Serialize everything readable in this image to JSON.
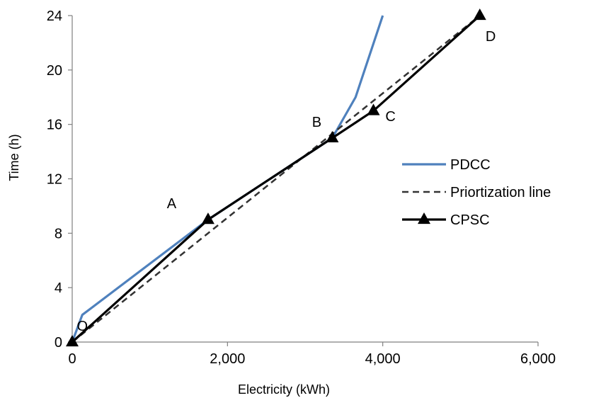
{
  "chart_data": {
    "type": "line",
    "title": "",
    "xlabel": "Electricity (kWh)",
    "ylabel": "Time (h)",
    "xlim": [
      0,
      6000
    ],
    "ylim": [
      0,
      24
    ],
    "x_ticks": [
      0,
      2000,
      4000,
      6000
    ],
    "x_tick_labels": [
      "0",
      "2,000",
      "4,000",
      "6,000"
    ],
    "y_ticks": [
      0,
      4,
      8,
      12,
      16,
      20,
      24
    ],
    "y_tick_labels": [
      "0",
      "4",
      "8",
      "12",
      "16",
      "20",
      "24"
    ],
    "grid": false,
    "legend_position": "right",
    "series": [
      {
        "name": "PDCC",
        "color": "#4f81bd",
        "style": "solid",
        "marker": "none",
        "points": [
          [
            0,
            0
          ],
          [
            130,
            2
          ],
          [
            1750,
            9
          ],
          [
            3350,
            15
          ],
          [
            3650,
            18
          ],
          [
            4000,
            24
          ]
        ]
      },
      {
        "name": "Priortization line",
        "color": "#333333",
        "style": "dashed",
        "marker": "none",
        "points": [
          [
            0,
            0
          ],
          [
            5250,
            24
          ]
        ]
      },
      {
        "name": "CPSC",
        "color": "#000000",
        "style": "solid",
        "marker": "triangle",
        "points": [
          [
            0,
            0
          ],
          [
            1750,
            9
          ],
          [
            3350,
            15
          ],
          [
            3880,
            17
          ],
          [
            5250,
            24
          ]
        ]
      }
    ],
    "annotations": [
      {
        "text": "O",
        "x": 130,
        "y": 1.2
      },
      {
        "text": "A",
        "x": 1280,
        "y": 10.2
      },
      {
        "text": "B",
        "x": 3150,
        "y": 16.2
      },
      {
        "text": "C",
        "x": 4100,
        "y": 16.6
      },
      {
        "text": "D",
        "x": 5390,
        "y": 22.5
      }
    ]
  }
}
